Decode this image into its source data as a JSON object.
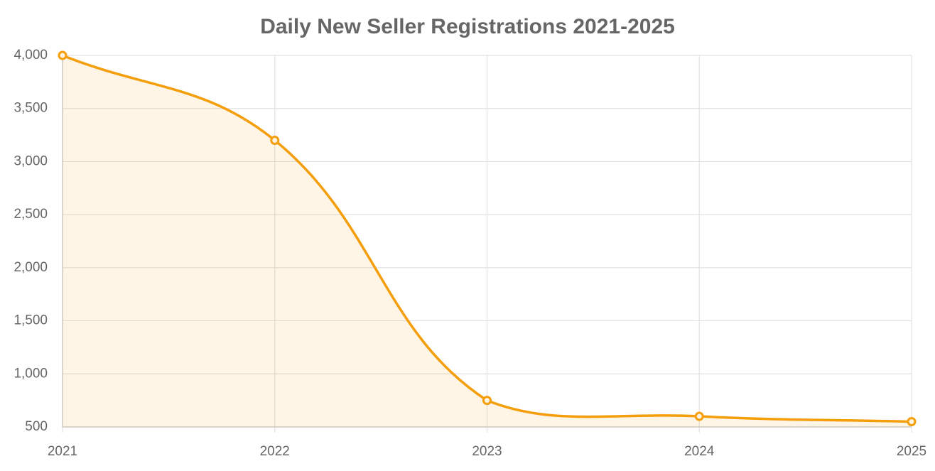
{
  "chart_data": {
    "type": "line",
    "title": "Daily New Seller Registrations 2021-2025",
    "categories": [
      "2021",
      "2022",
      "2023",
      "2024",
      "2025"
    ],
    "series": [
      {
        "name": "Daily New Seller Registrations",
        "color": "#f59e0b",
        "values": [
          4000,
          3200,
          750,
          600,
          550
        ]
      }
    ],
    "ylim": [
      500,
      4000
    ],
    "yticks": [
      500,
      {
        "value": 1000,
        "label": "1,000"
      },
      {
        "value": 1500,
        "label": "1,500"
      },
      {
        "value": 2000,
        "label": "2,000"
      },
      {
        "value": 2500,
        "label": "2,500"
      },
      {
        "value": 3000,
        "label": "3,000"
      },
      {
        "value": 3500,
        "label": "3,500"
      },
      {
        "value": 4000,
        "label": "4,000"
      }
    ],
    "grid": true,
    "fill": true,
    "smooth": true
  }
}
